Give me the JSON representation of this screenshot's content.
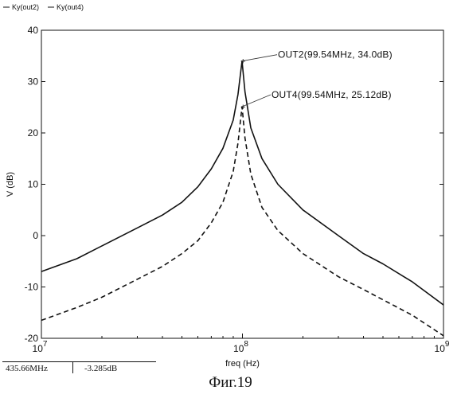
{
  "chart_data": {
    "type": "line",
    "x_scale": "log",
    "xlim": [
      10000000,
      1000000000
    ],
    "ylim": [
      -20,
      40
    ],
    "xlabel": "freq (Hz)",
    "ylabel": "V (dB)",
    "legend_position": "top-left",
    "x_ticks": [
      {
        "base": "10",
        "exp": "7"
      },
      {
        "base": "10",
        "exp": "8"
      },
      {
        "base": "10",
        "exp": "9"
      }
    ],
    "y_ticks": [
      "40",
      "30",
      "20",
      "10",
      "0",
      "-10",
      "-20"
    ],
    "y_tick_values": [
      40,
      30,
      20,
      10,
      0,
      -10,
      -20
    ],
    "series": [
      {
        "name": "Ky(out2)",
        "style": "solid",
        "color": "#111111",
        "points": [
          [
            10000000,
            -7.0
          ],
          [
            15000000,
            -4.5
          ],
          [
            20000000,
            -2.0
          ],
          [
            30000000,
            1.5
          ],
          [
            40000000,
            4.0
          ],
          [
            50000000,
            6.5
          ],
          [
            60000000,
            9.5
          ],
          [
            70000000,
            13.0
          ],
          [
            80000000,
            17.0
          ],
          [
            90000000,
            22.5
          ],
          [
            95000000,
            27.5
          ],
          [
            99540000,
            34.0
          ],
          [
            103000000,
            28.0
          ],
          [
            110000000,
            21.0
          ],
          [
            125000000,
            15.0
          ],
          [
            150000000,
            10.0
          ],
          [
            200000000,
            5.0
          ],
          [
            300000000,
            0.0
          ],
          [
            400000000,
            -3.5
          ],
          [
            500000000,
            -5.5
          ],
          [
            700000000,
            -9.0
          ],
          [
            1000000000,
            -13.5
          ]
        ]
      },
      {
        "name": "Ky(out4)",
        "style": "dashed",
        "color": "#111111",
        "points": [
          [
            10000000,
            -16.5
          ],
          [
            15000000,
            -14.0
          ],
          [
            20000000,
            -12.0
          ],
          [
            30000000,
            -8.5
          ],
          [
            40000000,
            -6.0
          ],
          [
            50000000,
            -3.5
          ],
          [
            60000000,
            -1.0
          ],
          [
            70000000,
            2.5
          ],
          [
            80000000,
            6.5
          ],
          [
            90000000,
            12.5
          ],
          [
            95000000,
            18.0
          ],
          [
            99540000,
            25.12
          ],
          [
            103000000,
            19.0
          ],
          [
            110000000,
            12.0
          ],
          [
            125000000,
            5.5
          ],
          [
            150000000,
            1.0
          ],
          [
            200000000,
            -3.5
          ],
          [
            300000000,
            -8.0
          ],
          [
            400000000,
            -10.5
          ],
          [
            500000000,
            -12.5
          ],
          [
            700000000,
            -15.5
          ],
          [
            1000000000,
            -19.5
          ]
        ]
      }
    ],
    "annotations": [
      {
        "text": "OUT2(99.54MHz, 34.0dB)",
        "x": 99540000,
        "y": 34.0
      },
      {
        "text": "OUT4(99.54MHz, 25.12dB)",
        "x": 99540000,
        "y": 25.12
      }
    ]
  },
  "cursor_readout": {
    "frequency": "435.66MHz",
    "level": "-3.285dB"
  },
  "caption": "Фиг.19"
}
